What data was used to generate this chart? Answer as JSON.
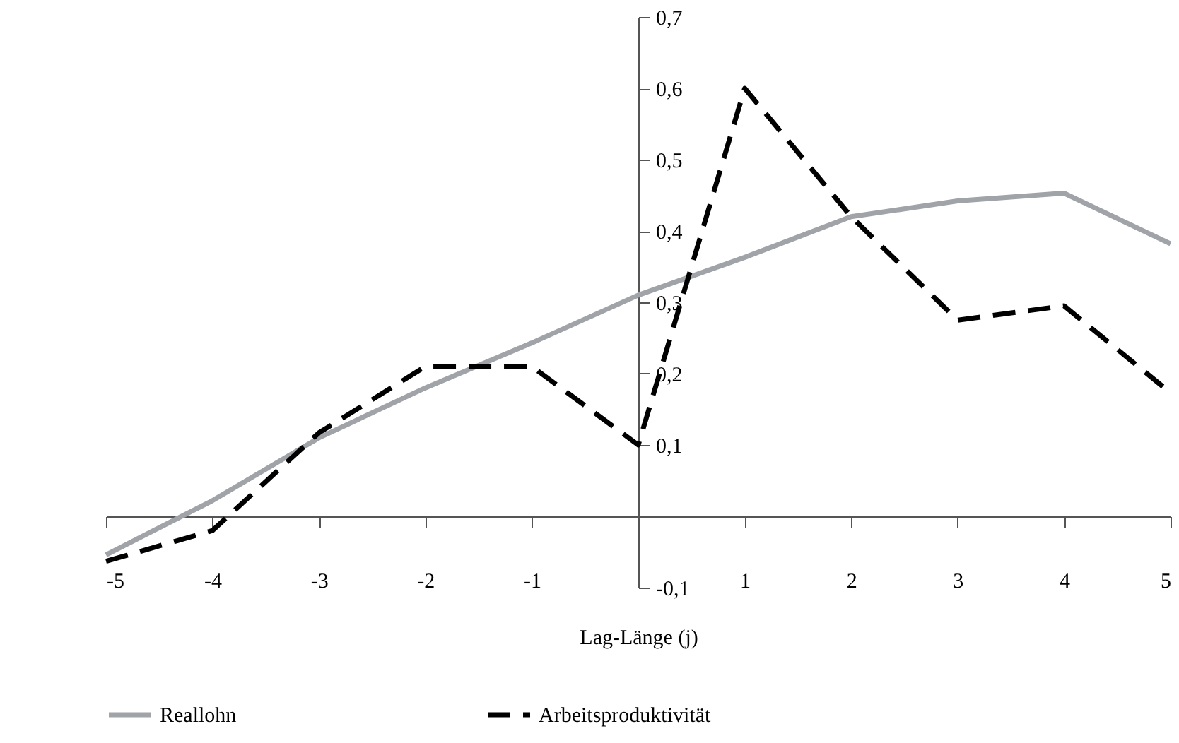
{
  "chart_data": {
    "type": "line",
    "xlabel": "Lag-Länge (j)",
    "x": [
      -5,
      -4,
      -3,
      -2,
      -1,
      0,
      1,
      2,
      3,
      4,
      5
    ],
    "series": [
      {
        "name": "Reallohn",
        "color": "#a0a3a8",
        "line_style": "solid",
        "values": [
          -0.054,
          0.022,
          0.11,
          0.18,
          0.243,
          0.31,
          0.363,
          0.42,
          0.442,
          0.453,
          0.382
        ]
      },
      {
        "name": "Arbeitsproduktivität",
        "color": "#000000",
        "line_style": "dashed",
        "values": [
          -0.063,
          -0.02,
          0.117,
          0.21,
          0.21,
          0.1,
          0.6,
          0.42,
          0.275,
          0.295,
          0.173
        ]
      }
    ],
    "xlim": [
      -5,
      5
    ],
    "xticks": [
      {
        "value": -5,
        "label": "-5"
      },
      {
        "value": -4,
        "label": "-4"
      },
      {
        "value": -3,
        "label": "-3"
      },
      {
        "value": -2,
        "label": "-2"
      },
      {
        "value": -1,
        "label": "-1"
      },
      {
        "value": 0,
        "label": null
      },
      1,
      2,
      3,
      4,
      5
    ],
    "ylim": [
      -0.1,
      0.7
    ],
    "yticks": [
      {
        "value": -0.1,
        "label": "-0,1"
      },
      {
        "value": 0,
        "label": null
      },
      {
        "value": 0.1,
        "label": "0,1"
      },
      {
        "value": 0.2,
        "label": "0,2"
      },
      {
        "value": 0.3,
        "label": "0,3"
      },
      {
        "value": 0.4,
        "label": "0,4"
      },
      {
        "value": 0.5,
        "label": "0,5"
      },
      {
        "value": 0.6,
        "label": "0,6"
      },
      {
        "value": 0.7,
        "label": "0,7"
      }
    ],
    "grid": false,
    "legend": "bottom left",
    "marker": "none"
  }
}
